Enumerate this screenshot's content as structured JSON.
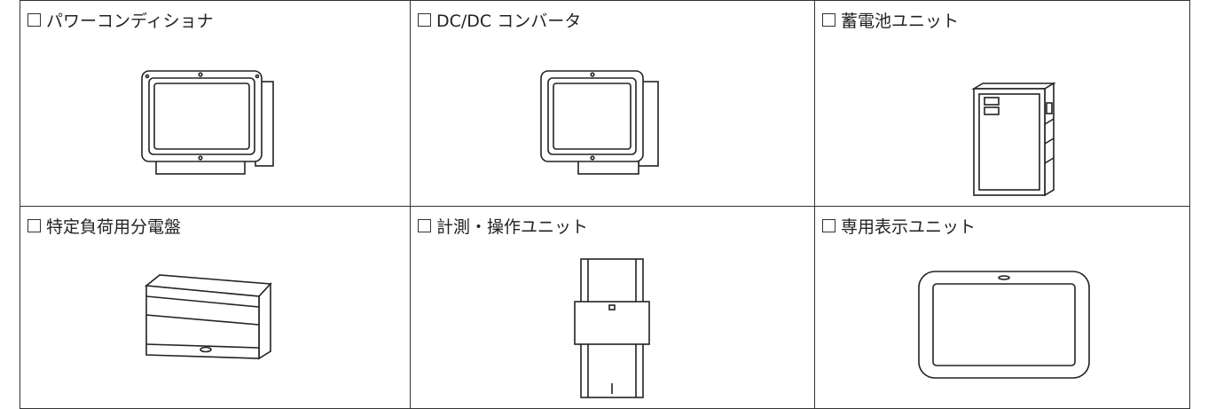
{
  "table": {
    "rows": [
      [
        {
          "label": "パワーコンディショナ"
        },
        {
          "label": "DC/DC コンバータ"
        },
        {
          "label": "蓄電池ユニット"
        }
      ],
      [
        {
          "label": "特定負荷用分電盤"
        },
        {
          "label": "計測・操作ユニット"
        },
        {
          "label": "専用表示ユニット"
        }
      ]
    ]
  }
}
